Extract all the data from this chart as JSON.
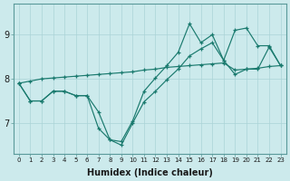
{
  "xlabel": "Humidex (Indice chaleur)",
  "background_color": "#cceaec",
  "grid_color": "#aad4d7",
  "line_color": "#1a7a6e",
  "x_values": [
    0,
    1,
    2,
    3,
    4,
    5,
    6,
    7,
    8,
    9,
    10,
    11,
    12,
    13,
    14,
    15,
    16,
    17,
    18,
    19,
    20,
    21,
    22,
    23
  ],
  "line_straight": [
    7.9,
    7.95,
    8.0,
    8.02,
    8.04,
    8.06,
    8.08,
    8.1,
    8.12,
    8.14,
    8.16,
    8.2,
    8.22,
    8.26,
    8.28,
    8.3,
    8.32,
    8.34,
    8.36,
    8.2,
    8.22,
    8.24,
    8.28,
    8.3
  ],
  "line_main": [
    7.9,
    7.5,
    7.5,
    7.72,
    7.72,
    7.62,
    7.62,
    7.25,
    6.62,
    6.58,
    7.05,
    7.72,
    8.02,
    8.3,
    8.6,
    9.25,
    8.82,
    9.0,
    8.42,
    9.1,
    9.15,
    8.75,
    8.75,
    8.3
  ],
  "line_lower": [
    7.9,
    7.5,
    7.5,
    7.72,
    7.72,
    7.62,
    7.62,
    6.88,
    6.62,
    6.5,
    7.0,
    7.48,
    7.72,
    7.98,
    8.22,
    8.52,
    8.68,
    8.82,
    8.42,
    8.1,
    8.22,
    8.22,
    8.72,
    8.3
  ],
  "ylim": [
    6.3,
    9.7
  ],
  "xlim": [
    -0.5,
    23.5
  ],
  "yticks": [
    7,
    8,
    9
  ],
  "xtick_labels": [
    "0",
    "1",
    "2",
    "3",
    "4",
    "5",
    "6",
    "7",
    "8",
    "9",
    "10",
    "11",
    "12",
    "13",
    "14",
    "15",
    "16",
    "17",
    "18",
    "19",
    "20",
    "21",
    "22",
    "23"
  ]
}
